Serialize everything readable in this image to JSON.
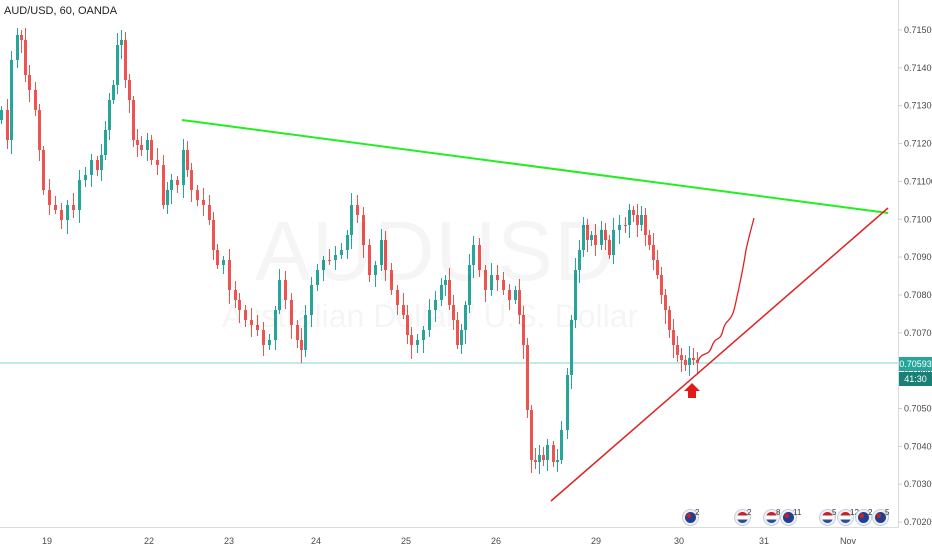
{
  "chart": {
    "symbol": "AUD/USD, 60, OANDA",
    "watermark_symbol": "AUDUSD",
    "watermark_name": "Australian Dollar / U.S. Dollar",
    "current_price": "0.70593",
    "countdown": "41:30",
    "colors": {
      "up_candle": "#26a69a",
      "down_candle": "#ef5350",
      "resistance_line": "#22ee22",
      "support_line": "#e32020",
      "projection": "#e32020",
      "price_line": "#7fd6cd",
      "price_tag": "#26a69a",
      "countdown_tag": "#1a7f75"
    },
    "price_axis_labels": [
      "0.71500",
      "0.71400",
      "0.71300",
      "0.71200",
      "0.71100",
      "0.71000",
      "0.70900",
      "0.70800",
      "0.70700",
      "0.70600",
      "0.70500",
      "0.70400",
      "0.70300",
      "0.70200"
    ],
    "time_axis_labels": [
      "19",
      "22",
      "23",
      "24",
      "25",
      "26",
      "29",
      "30",
      "31",
      "Nov"
    ],
    "annotations": {
      "resistance": "descending green trendline from 0.71258 on 22 to 0.71010 near Nov",
      "support": "ascending red trendline from 0.70220 on 26 to 0.71020 near Nov",
      "arrow": "red up-arrow under the candle touching support",
      "projection": "hand-drawn red squiggle projecting upward from 0.70593 to about 0.70990"
    }
  },
  "events": [
    {
      "icon": "australia-flag-icon",
      "count": "2"
    },
    {
      "icon": "usa-flag-icon",
      "count": "2"
    },
    {
      "icon": "usa-flag-icon",
      "count": "8"
    },
    {
      "icon": "australia-flag-icon",
      "count": "11"
    },
    {
      "icon": "usa-flag-icon",
      "count": "5"
    },
    {
      "icon": "usa-flag-icon",
      "count": "12"
    },
    {
      "icon": "australia-flag-icon",
      "count": "2"
    },
    {
      "icon": "australia-flag-icon",
      "count": "5"
    }
  ]
}
